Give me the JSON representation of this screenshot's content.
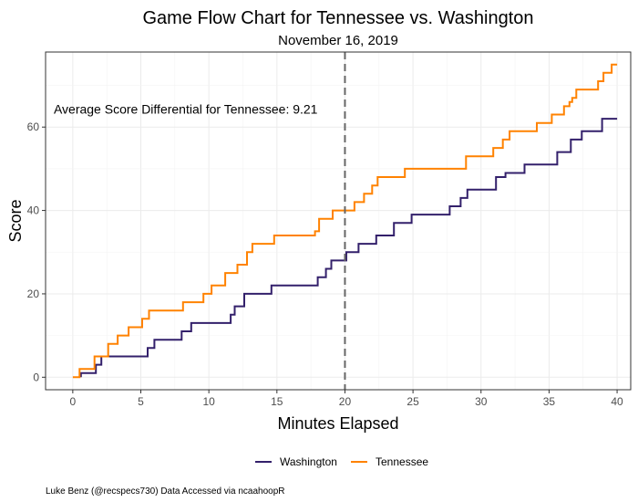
{
  "chart_data": {
    "type": "line",
    "title": "Game Flow Chart for Tennessee vs. Washington",
    "subtitle": "November 16, 2019",
    "xlabel": "Minutes Elapsed",
    "ylabel": "Score",
    "xlim": [
      -2,
      41
    ],
    "ylim": [
      -3,
      78
    ],
    "x_ticks": [
      0,
      5,
      10,
      15,
      20,
      25,
      30,
      35,
      40
    ],
    "y_ticks": [
      0,
      20,
      40,
      60
    ],
    "grid": true,
    "legend_position": "bottom",
    "vline": {
      "x": 20,
      "style": "dashed",
      "color": "#666666"
    },
    "annotation": "Average Score Differential for Tennessee: 9.21",
    "caption": "Luke Benz (@recspecs730) Data Accessed via ncaahoopR",
    "series": [
      {
        "name": "Washington",
        "color": "#33206b",
        "step_points": [
          [
            0.6,
            0
          ],
          [
            0.6,
            1
          ],
          [
            1.7,
            1
          ],
          [
            1.7,
            3
          ],
          [
            2.1,
            3
          ],
          [
            2.1,
            5
          ],
          [
            5.5,
            5
          ],
          [
            5.5,
            7
          ],
          [
            6.0,
            7
          ],
          [
            6.0,
            9
          ],
          [
            8.0,
            9
          ],
          [
            8.0,
            11
          ],
          [
            8.7,
            11
          ],
          [
            8.7,
            13
          ],
          [
            11.6,
            13
          ],
          [
            11.6,
            15
          ],
          [
            11.9,
            15
          ],
          [
            11.9,
            17
          ],
          [
            12.6,
            17
          ],
          [
            12.6,
            20
          ],
          [
            14.6,
            20
          ],
          [
            14.6,
            22
          ],
          [
            18.0,
            22
          ],
          [
            18.0,
            24
          ],
          [
            18.6,
            24
          ],
          [
            18.6,
            26
          ],
          [
            19.0,
            26
          ],
          [
            19.0,
            28
          ],
          [
            20.1,
            28
          ],
          [
            20.1,
            30
          ],
          [
            21.0,
            30
          ],
          [
            21.0,
            32
          ],
          [
            22.3,
            32
          ],
          [
            22.3,
            34
          ],
          [
            23.6,
            34
          ],
          [
            23.6,
            37
          ],
          [
            24.9,
            37
          ],
          [
            24.9,
            39
          ],
          [
            27.7,
            39
          ],
          [
            27.7,
            41
          ],
          [
            28.5,
            41
          ],
          [
            28.5,
            43
          ],
          [
            29.0,
            43
          ],
          [
            29.0,
            45
          ],
          [
            31.1,
            45
          ],
          [
            31.1,
            48
          ],
          [
            31.8,
            48
          ],
          [
            31.8,
            49
          ],
          [
            33.2,
            49
          ],
          [
            33.2,
            51
          ],
          [
            35.6,
            51
          ],
          [
            35.6,
            54
          ],
          [
            36.6,
            54
          ],
          [
            36.6,
            57
          ],
          [
            37.4,
            57
          ],
          [
            37.4,
            59
          ],
          [
            38.9,
            59
          ],
          [
            38.9,
            62
          ],
          [
            40.0,
            62
          ]
        ]
      },
      {
        "name": "Tennessee",
        "color": "#ff8200",
        "step_points": [
          [
            0.0,
            0
          ],
          [
            0.5,
            0
          ],
          [
            0.5,
            2
          ],
          [
            1.6,
            2
          ],
          [
            1.6,
            5
          ],
          [
            2.6,
            5
          ],
          [
            2.6,
            8
          ],
          [
            3.3,
            8
          ],
          [
            3.3,
            10
          ],
          [
            4.1,
            10
          ],
          [
            4.1,
            12
          ],
          [
            5.1,
            12
          ],
          [
            5.1,
            14
          ],
          [
            5.6,
            14
          ],
          [
            5.6,
            16
          ],
          [
            8.1,
            16
          ],
          [
            8.1,
            18
          ],
          [
            9.6,
            18
          ],
          [
            9.6,
            20
          ],
          [
            10.2,
            20
          ],
          [
            10.2,
            22
          ],
          [
            11.2,
            22
          ],
          [
            11.2,
            25
          ],
          [
            12.1,
            25
          ],
          [
            12.1,
            27
          ],
          [
            12.8,
            27
          ],
          [
            12.8,
            30
          ],
          [
            13.2,
            30
          ],
          [
            13.2,
            32
          ],
          [
            14.8,
            32
          ],
          [
            14.8,
            34
          ],
          [
            17.8,
            34
          ],
          [
            17.8,
            35
          ],
          [
            18.1,
            35
          ],
          [
            18.1,
            38
          ],
          [
            19.1,
            38
          ],
          [
            19.1,
            40
          ],
          [
            20.7,
            40
          ],
          [
            20.7,
            42
          ],
          [
            21.4,
            42
          ],
          [
            21.4,
            44
          ],
          [
            22.0,
            44
          ],
          [
            22.0,
            46
          ],
          [
            22.4,
            46
          ],
          [
            22.4,
            48
          ],
          [
            24.4,
            48
          ],
          [
            24.4,
            50
          ],
          [
            28.9,
            50
          ],
          [
            28.9,
            53
          ],
          [
            30.9,
            53
          ],
          [
            30.9,
            55
          ],
          [
            31.6,
            55
          ],
          [
            31.6,
            57
          ],
          [
            32.1,
            57
          ],
          [
            32.1,
            59
          ],
          [
            34.1,
            59
          ],
          [
            34.1,
            61
          ],
          [
            35.2,
            61
          ],
          [
            35.2,
            63
          ],
          [
            36.1,
            63
          ],
          [
            36.1,
            65
          ],
          [
            36.5,
            65
          ],
          [
            36.5,
            66
          ],
          [
            36.7,
            66
          ],
          [
            36.7,
            67
          ],
          [
            37.0,
            67
          ],
          [
            37.0,
            69
          ],
          [
            38.6,
            69
          ],
          [
            38.6,
            71
          ],
          [
            39.0,
            71
          ],
          [
            39.0,
            73
          ],
          [
            39.6,
            73
          ],
          [
            39.6,
            75
          ],
          [
            40.0,
            75
          ]
        ]
      }
    ]
  }
}
